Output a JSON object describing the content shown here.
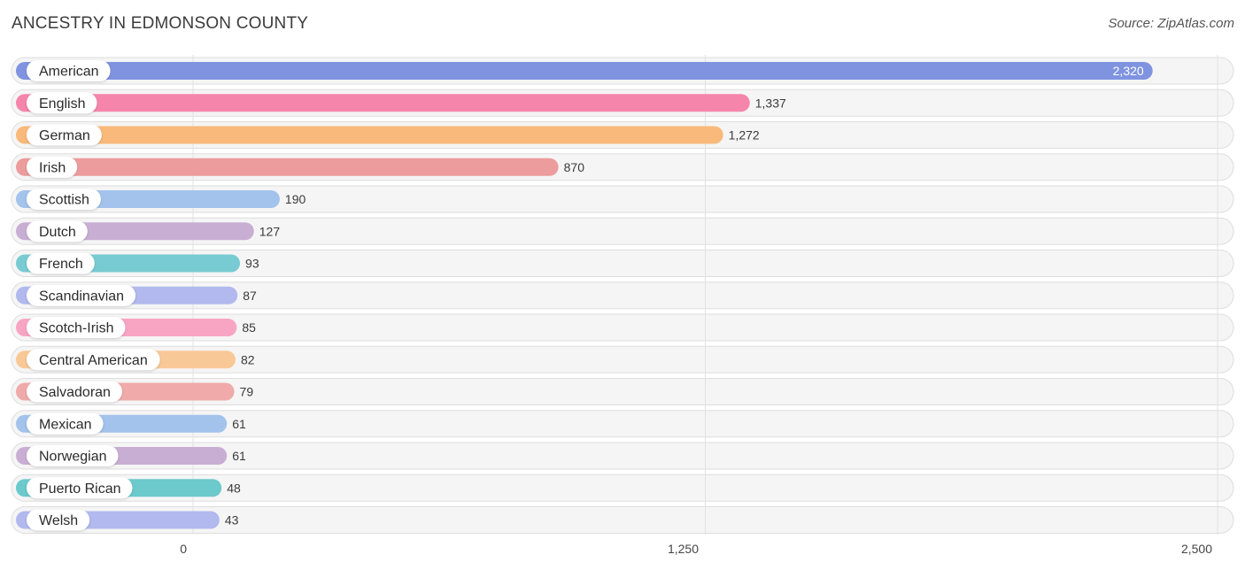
{
  "title": "ANCESTRY IN EDMONSON COUNTY",
  "source": "Source: ZipAtlas.com",
  "chart_data": {
    "type": "bar",
    "orientation": "horizontal",
    "title": "ANCESTRY IN EDMONSON COUNTY",
    "categories": [
      "American",
      "English",
      "German",
      "Irish",
      "Scottish",
      "Dutch",
      "French",
      "Scandinavian",
      "Scotch-Irish",
      "Central American",
      "Salvadoran",
      "Mexican",
      "Norwegian",
      "Puerto Rican",
      "Welsh"
    ],
    "values": [
      2320,
      1337,
      1272,
      870,
      190,
      127,
      93,
      87,
      85,
      82,
      79,
      61,
      61,
      48,
      43
    ],
    "value_labels": [
      "2,320",
      "1,337",
      "1,272",
      "870",
      "190",
      "127",
      "93",
      "87",
      "85",
      "82",
      "79",
      "61",
      "61",
      "48",
      "43"
    ],
    "colors": [
      "#7f93e0",
      "#f585ab",
      "#f9b97b",
      "#ec9c9c",
      "#a3c3ec",
      "#c9aed3",
      "#78cbd3",
      "#b1b9ee",
      "#f7a5c2",
      "#f9c897",
      "#f0aaaa",
      "#a3c3ec",
      "#c9aed3",
      "#6cc9cc",
      "#b1b9ee"
    ],
    "xlim": [
      0,
      2500
    ],
    "xticks": [
      0,
      1250,
      2500
    ],
    "xtick_labels": [
      "0",
      "1,250",
      "2,500"
    ],
    "grid": true
  }
}
